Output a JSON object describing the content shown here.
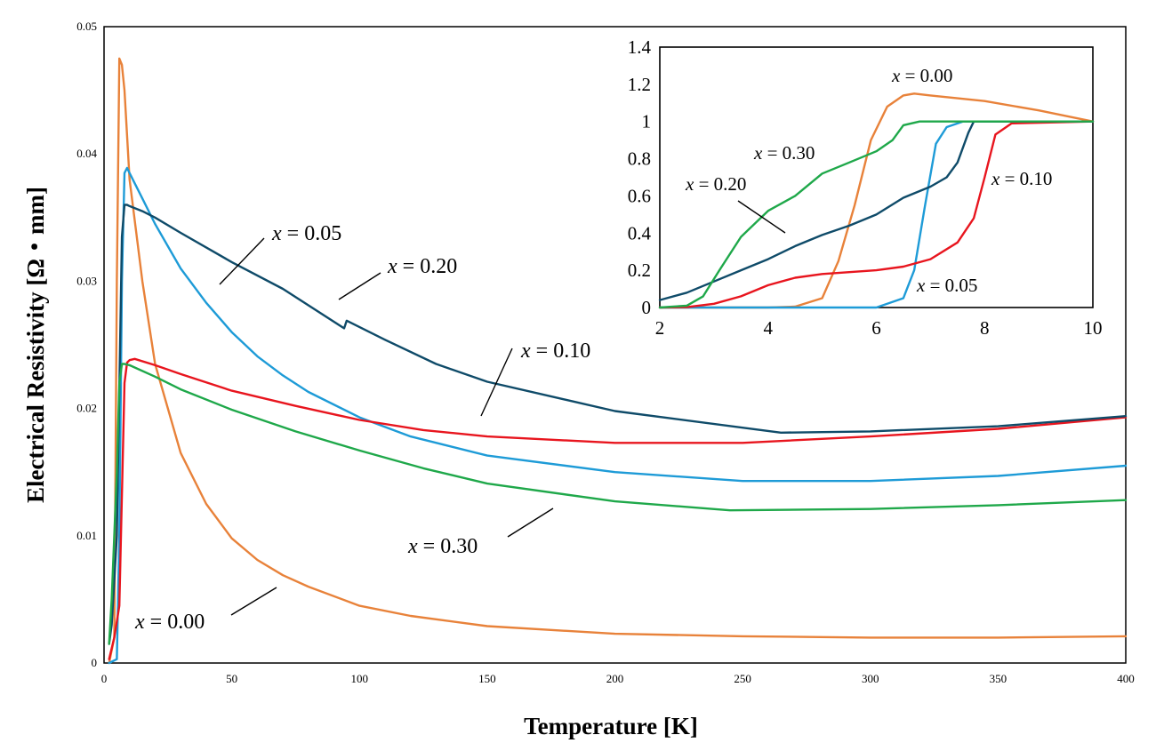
{
  "chart_data": [
    {
      "type": "line",
      "xlabel": "Temperature [K]",
      "ylabel": "Electrical Resistivity [Ω・mm]",
      "xlim": [
        0,
        400
      ],
      "ylim": [
        0,
        0.05
      ],
      "xticks": [
        "0",
        "50",
        "100",
        "150",
        "200",
        "250",
        "300",
        "350",
        "400"
      ],
      "yticks": [
        "0",
        "0.01",
        "0.02",
        "0.03",
        "0.04",
        "0.05"
      ],
      "grid": false,
      "series": [
        {
          "name": "x = 0.00",
          "color": "#E8823A",
          "x": [
            2,
            4,
            5,
            6,
            7,
            8,
            10,
            15,
            20,
            30,
            40,
            50,
            60,
            70,
            80,
            100,
            120,
            150,
            200,
            250,
            300,
            350,
            400
          ],
          "y": [
            0.0,
            0.002,
            0.03,
            0.0475,
            0.047,
            0.045,
            0.038,
            0.03,
            0.0235,
            0.0165,
            0.0125,
            0.0098,
            0.0081,
            0.0069,
            0.006,
            0.0045,
            0.0037,
            0.0029,
            0.0023,
            0.0021,
            0.002,
            0.002,
            0.0021
          ]
        },
        {
          "name": "x = 0.05",
          "color": "#1E9BD7",
          "x": [
            2,
            5,
            6,
            7,
            8,
            9,
            10,
            15,
            20,
            30,
            40,
            50,
            60,
            70,
            80,
            100,
            120,
            150,
            200,
            250,
            300,
            350,
            400
          ],
          "y": [
            0.0,
            0.0003,
            0.01,
            0.03,
            0.0385,
            0.0389,
            0.0385,
            0.0365,
            0.0345,
            0.031,
            0.0283,
            0.026,
            0.0241,
            0.0226,
            0.0213,
            0.0193,
            0.0178,
            0.0163,
            0.015,
            0.0143,
            0.0143,
            0.0147,
            0.0155
          ]
        },
        {
          "name": "x = 0.10",
          "color": "#E8151E",
          "x": [
            2,
            4,
            6,
            8,
            9,
            10,
            12,
            20,
            30,
            50,
            75,
            100,
            125,
            150,
            200,
            250,
            300,
            350,
            400
          ],
          "y": [
            0.0003,
            0.002,
            0.0045,
            0.022,
            0.0236,
            0.0238,
            0.0239,
            0.0234,
            0.0227,
            0.0214,
            0.0202,
            0.0191,
            0.0183,
            0.0178,
            0.0173,
            0.0173,
            0.0178,
            0.0184,
            0.0193
          ]
        },
        {
          "name": "x = 0.20",
          "color": "#0F4B69",
          "x": [
            2,
            3,
            5,
            7,
            8,
            9,
            10,
            15,
            20,
            30,
            50,
            70,
            94,
            95,
            110,
            130,
            150,
            200,
            265,
            300,
            350,
            400
          ],
          "y": [
            0.0015,
            0.003,
            0.01,
            0.0335,
            0.036,
            0.036,
            0.0359,
            0.0355,
            0.035,
            0.0338,
            0.0315,
            0.0294,
            0.0263,
            0.0269,
            0.0254,
            0.0235,
            0.0221,
            0.0198,
            0.0181,
            0.0182,
            0.0186,
            0.0194
          ]
        },
        {
          "name": "x = 0.30",
          "color": "#1FA84A",
          "x": [
            2,
            3,
            5,
            6,
            7,
            8,
            10,
            20,
            30,
            50,
            75,
            100,
            125,
            150,
            200,
            245,
            300,
            350,
            400
          ],
          "y": [
            0.0015,
            0.005,
            0.015,
            0.022,
            0.0235,
            0.0235,
            0.0234,
            0.0225,
            0.0215,
            0.0199,
            0.0182,
            0.0167,
            0.0153,
            0.0141,
            0.0127,
            0.012,
            0.0121,
            0.0124,
            0.0128
          ]
        }
      ],
      "annotations": [
        {
          "text": "x = 0.05",
          "italic": "x",
          "rest": " = 0.05"
        },
        {
          "text": "x = 0.20",
          "italic": "x",
          "rest": " = 0.20"
        },
        {
          "text": "x = 0.10",
          "italic": "x",
          "rest": " = 0.10"
        },
        {
          "text": "x = 0.30",
          "italic": "x",
          "rest": " = 0.30"
        },
        {
          "text": "x = 0.00",
          "italic": "x",
          "rest": " = 0.00"
        }
      ]
    },
    {
      "type": "line",
      "xlabel": "",
      "ylabel": "",
      "xlim": [
        2,
        10
      ],
      "ylim": [
        0,
        1.4
      ],
      "xticks": [
        "2",
        "4",
        "6",
        "8",
        "10"
      ],
      "yticks": [
        "0",
        "0.2",
        "0.4",
        "0.6",
        "0.8",
        "1",
        "1.2",
        "1.4"
      ],
      "grid": false,
      "series": [
        {
          "name": "x = 0.00",
          "color": "#E8823A",
          "x": [
            2,
            4,
            4.5,
            5,
            5.3,
            5.6,
            5.9,
            6.2,
            6.5,
            6.7,
            7,
            8,
            9,
            10
          ],
          "y": [
            0,
            0,
            0.005,
            0.05,
            0.25,
            0.55,
            0.9,
            1.08,
            1.14,
            1.15,
            1.14,
            1.11,
            1.06,
            1.0
          ]
        },
        {
          "name": "x = 0.05",
          "color": "#1E9BD7",
          "x": [
            2,
            6,
            6.5,
            6.7,
            6.9,
            7.1,
            7.3,
            7.6,
            8,
            10
          ],
          "y": [
            0,
            0,
            0.05,
            0.2,
            0.55,
            0.88,
            0.97,
            1.0,
            1.0,
            1.0
          ]
        },
        {
          "name": "x = 0.10",
          "color": "#E8151E",
          "x": [
            2,
            2.5,
            3,
            3.5,
            4,
            4.5,
            5,
            5.5,
            6,
            6.5,
            7,
            7.5,
            7.8,
            8,
            8.2,
            8.5,
            10
          ],
          "y": [
            0,
            0.002,
            0.02,
            0.06,
            0.12,
            0.16,
            0.18,
            0.19,
            0.2,
            0.22,
            0.26,
            0.35,
            0.48,
            0.7,
            0.93,
            0.99,
            1.0
          ]
        },
        {
          "name": "x = 0.20",
          "color": "#0F4B69",
          "x": [
            2,
            2.5,
            3,
            3.5,
            4,
            4.5,
            5,
            5.5,
            6,
            6.5,
            7,
            7.3,
            7.5,
            7.7,
            7.8,
            8,
            10
          ],
          "y": [
            0.04,
            0.08,
            0.14,
            0.2,
            0.26,
            0.33,
            0.39,
            0.44,
            0.5,
            0.59,
            0.65,
            0.7,
            0.78,
            0.94,
            1.0,
            1.0,
            1.0
          ]
        },
        {
          "name": "x = 0.30",
          "color": "#1FA84A",
          "x": [
            2,
            2.5,
            2.8,
            3.1,
            3.5,
            4,
            4.5,
            5,
            5.5,
            6,
            6.3,
            6.5,
            6.8,
            7,
            8,
            10
          ],
          "y": [
            0,
            0.01,
            0.06,
            0.2,
            0.38,
            0.52,
            0.6,
            0.72,
            0.78,
            0.84,
            0.9,
            0.98,
            1.0,
            1.0,
            1.0,
            1.0
          ]
        }
      ],
      "annotations": [
        {
          "text": "x = 0.00",
          "italic": "x",
          "rest": " = 0.00"
        },
        {
          "text": "x = 0.30",
          "italic": "x",
          "rest": " = 0.30"
        },
        {
          "text": "x = 0.20",
          "italic": "x",
          "rest": " = 0.20"
        },
        {
          "text": "x = 0.10",
          "italic": "x",
          "rest": " = 0.10"
        },
        {
          "text": "x = 0.05",
          "italic": "x",
          "rest": " = 0.05"
        }
      ]
    }
  ]
}
